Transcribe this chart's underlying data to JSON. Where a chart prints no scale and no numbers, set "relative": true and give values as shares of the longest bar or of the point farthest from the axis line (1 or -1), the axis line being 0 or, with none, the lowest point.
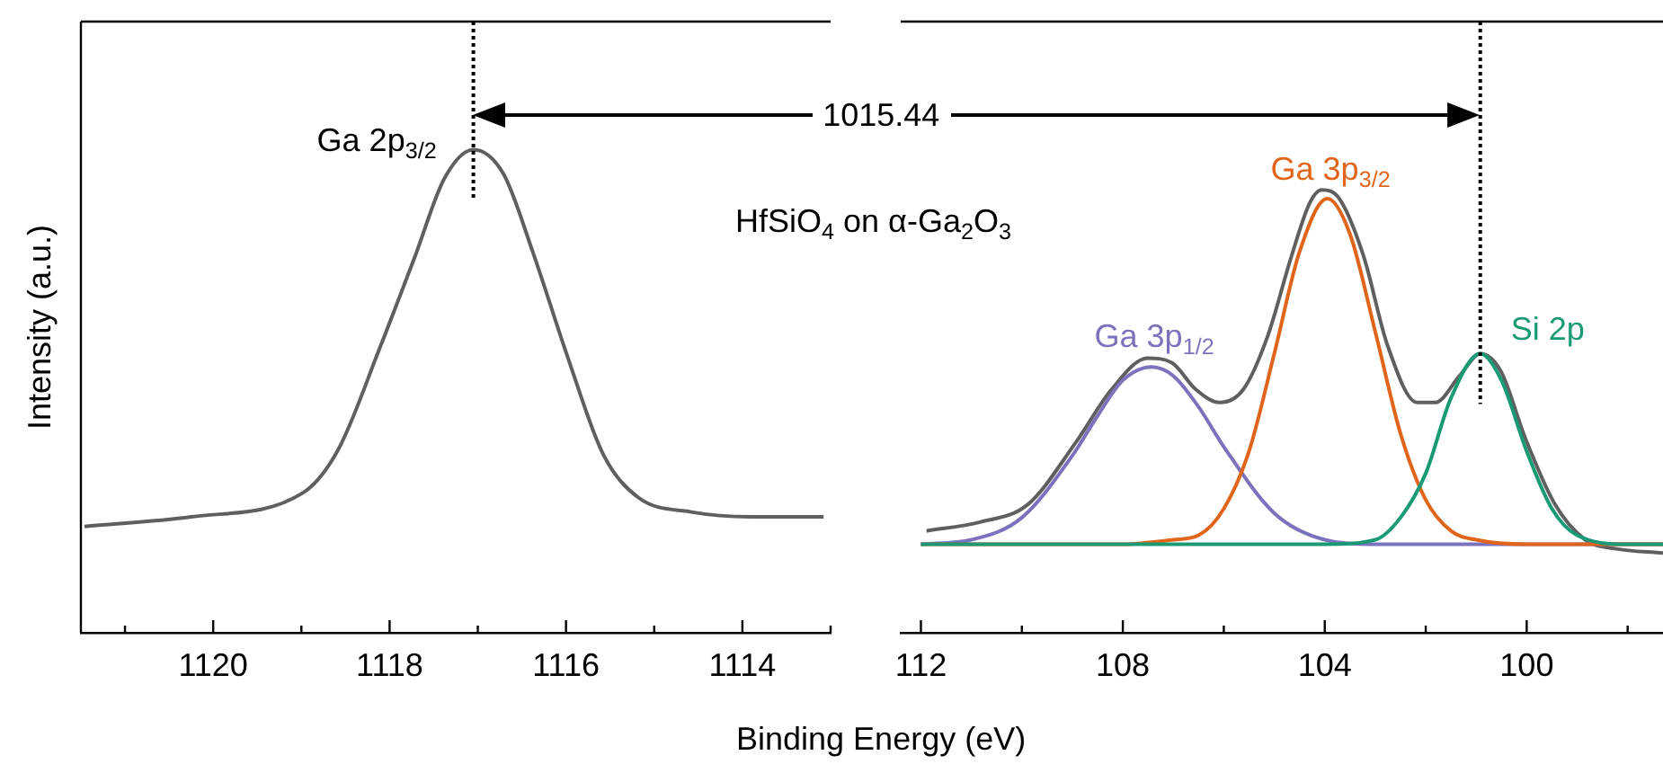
{
  "chart_data": [
    {
      "type": "line",
      "relative": true,
      "xlabel": "Binding Energy (eV)",
      "ylabel": "Intensity (a.u.)",
      "xlim": [
        1121.5,
        1113
      ],
      "xticks": [
        {
          "value": 1121,
          "label": null
        },
        1120,
        {
          "value": 1119,
          "label": null
        },
        1118,
        {
          "value": 1117,
          "label": null
        },
        1116,
        {
          "value": 1115,
          "label": null
        },
        1114,
        {
          "value": 1113,
          "label": null
        }
      ],
      "x": [
        1121.46,
        1120.25,
        1118.98,
        1118.58,
        1118.11,
        1117.71,
        1117.38,
        1117.05,
        1116.71,
        1116.38,
        1115.98,
        1115.58,
        1115.18,
        1114.58,
        1113.91,
        1113.08
      ],
      "series": [
        {
          "color": "#5f5f5f",
          "values": [
            0.22,
            0.24,
            0.29,
            0.38,
            0.59,
            0.78,
            0.94,
            1,
            0.95,
            0.79,
            0.57,
            0.37,
            0.28,
            0.25,
            0.24,
            0.24
          ]
        }
      ],
      "ref_lines": [
        {
          "axis": "x",
          "value": 1117.05,
          "line_style": "dotted",
          "color": "#000000"
        }
      ],
      "annotations": [
        {
          "text": "Ga 2p$_{3/2}$",
          "x": 1117.05,
          "y": 1
        },
        "HfSiO$_{4}$ on α-Ga$_{2}$O$_{3}$"
      ]
    },
    {
      "type": "line",
      "relative": true,
      "xlim": [
        112.4,
        97.3
      ],
      "xticks": [
        112,
        {
          "value": 110,
          "label": null
        },
        108,
        {
          "value": 106,
          "label": null
        },
        104,
        {
          "value": 102,
          "label": null
        },
        100,
        {
          "value": 98,
          "label": null
        }
      ],
      "series": [
        {
          "color": "#5f5f5f",
          "x": [
            111.89,
            110.83,
            109.88,
            108.93,
            108.22,
            107.51,
            107.03,
            106.56,
            106.08,
            105.61,
            105.13,
            104.66,
            104.3,
            104.06,
            103.71,
            103.23,
            102.76,
            102.17,
            101.81,
            101.33,
            100.92,
            100.51,
            100.03,
            99.44,
            98.84,
            98.25,
            97.3
          ],
          "values": [
            0.23,
            0.25,
            0.29,
            0.43,
            0.55,
            0.62,
            0.61,
            0.55,
            0.52,
            0.55,
            0.67,
            0.85,
            0.97,
            1,
            0.98,
            0.85,
            0.65,
            0.52,
            0.52,
            0.58,
            0.63,
            0.59,
            0.44,
            0.29,
            0.21,
            0.19,
            0.18
          ]
        },
        {
          "name": "Ga 3p$_{1/2}$",
          "color": "#7b72bd",
          "x": [
            112,
            111,
            110,
            109,
            108.5,
            108,
            107.44,
            107,
            106.5,
            106,
            105,
            104,
            103,
            102,
            97.3
          ],
          "values": [
            0.2,
            0.21,
            0.26,
            0.4,
            0.49,
            0.57,
            0.6,
            0.58,
            0.51,
            0.42,
            0.27,
            0.21,
            0.2,
            0.2,
            0.2
          ]
        },
        {
          "name": "Ga 3p$_{3/2}$",
          "color": "#e0651a",
          "x": [
            112,
            108,
            107,
            106.5,
            106,
            105.5,
            105,
            104.5,
            103.95,
            103.5,
            103,
            102.5,
            102,
            101.5,
            101,
            100,
            97.3
          ],
          "values": [
            0.2,
            0.2,
            0.21,
            0.22,
            0.28,
            0.41,
            0.63,
            0.86,
            0.98,
            0.9,
            0.68,
            0.45,
            0.3,
            0.23,
            0.21,
            0.2,
            0.2
          ]
        },
        {
          "name": "Si 2p",
          "color": "#1a9a74",
          "x": [
            112,
            104,
            103,
            102.5,
            102,
            101.5,
            100.92,
            100.5,
            100,
            99.5,
            99,
            98,
            97.3
          ],
          "values": [
            0.2,
            0.2,
            0.21,
            0.26,
            0.36,
            0.53,
            0.63,
            0.57,
            0.41,
            0.28,
            0.22,
            0.2,
            0.2
          ]
        }
      ],
      "ref_lines": [
        {
          "axis": "x",
          "value": 100.92,
          "line_style": "dotted",
          "color": "#000000"
        }
      ],
      "annotations": [
        "1015.44"
      ]
    }
  ]
}
